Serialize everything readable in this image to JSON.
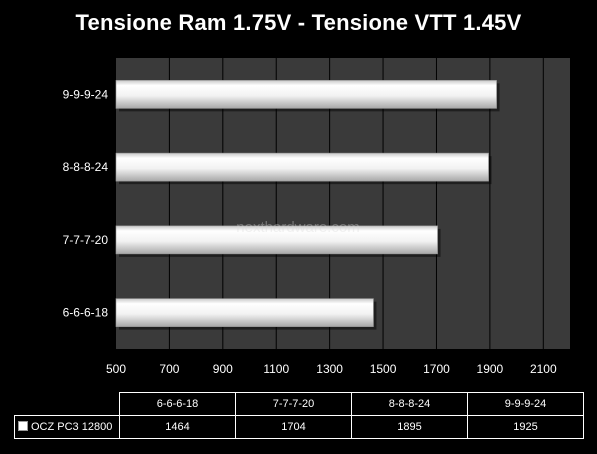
{
  "watermark": "nexthardware.com",
  "chart_data": {
    "type": "bar",
    "orientation": "horizontal",
    "title": "Tensione Ram 1.75V - Tensione VTT 1.45V",
    "categories": [
      "6-6-6-18",
      "7-7-7-20",
      "8-8-8-24",
      "9-9-9-24"
    ],
    "series": [
      {
        "name": "OCZ PC3 12800",
        "values": [
          1464,
          1704,
          1895,
          1925
        ]
      }
    ],
    "xlim": [
      500,
      2200
    ],
    "xticks": [
      "500",
      "700",
      "900",
      "1100",
      "1300",
      "1500",
      "1700",
      "1900",
      "2100"
    ],
    "xgrid": true,
    "data_table": true,
    "colors": {
      "background": "#000000",
      "plot_area": "#3a3a3a",
      "bar": "#ffffff",
      "grid": "#000000"
    }
  }
}
